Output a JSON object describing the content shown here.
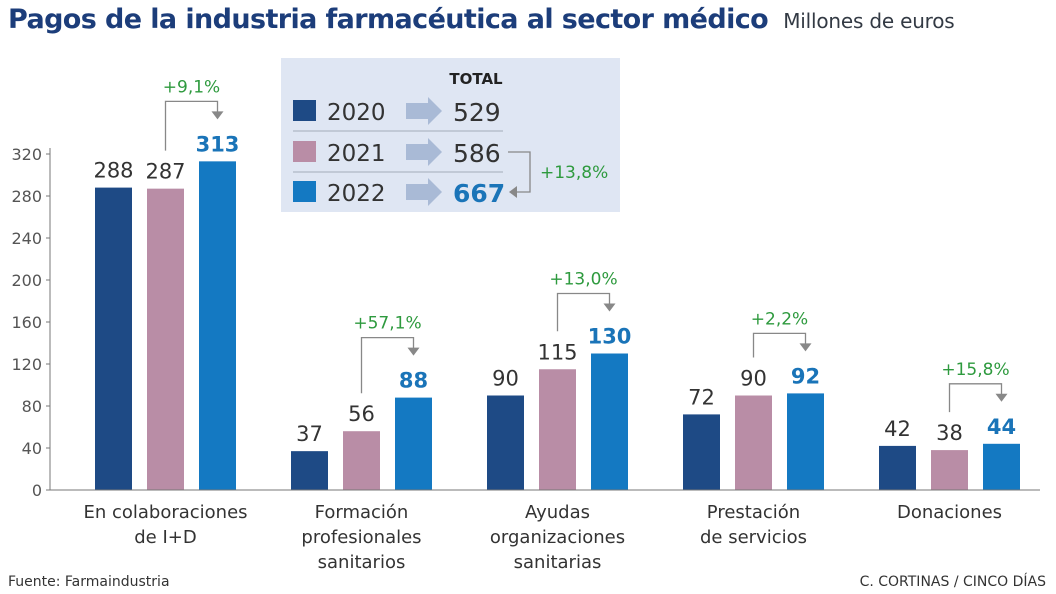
{
  "title": "Pagos de la industria farmacéutica al sector médico",
  "subtitle": "Millones de euros",
  "source": "Fuente: Farmaindustria",
  "credit": "C. CORTINAS / CINCO DÍAS",
  "colors": {
    "2020": "#1e4a85",
    "2021": "#b98da6",
    "2022": "#1479c2",
    "growth": "#2e9a3e",
    "legend_bg": "#dfe6f3"
  },
  "chart_data": {
    "type": "bar",
    "ylim": [
      0,
      320
    ],
    "yticks": [
      0,
      40,
      80,
      120,
      160,
      200,
      240,
      280,
      320
    ],
    "categories": [
      [
        "En colaboraciones",
        "de I+D"
      ],
      [
        "Formación",
        "profesionales",
        "sanitarios"
      ],
      [
        "Ayudas",
        "organizaciones",
        "sanitarias"
      ],
      [
        "Prestación",
        "de servicios"
      ],
      [
        "Donaciones"
      ]
    ],
    "series": [
      {
        "name": "2020",
        "values": [
          288,
          37,
          90,
          72,
          42
        ]
      },
      {
        "name": "2021",
        "values": [
          287,
          56,
          115,
          90,
          38
        ]
      },
      {
        "name": "2022",
        "values": [
          313,
          88,
          130,
          92,
          44
        ]
      }
    ],
    "growth_labels": [
      "+9,1%",
      "+57,1%",
      "+13,0%",
      "+2,2%",
      "+15,8%"
    ],
    "legend": {
      "header": "TOTAL",
      "entries": [
        {
          "year": "2020",
          "total": "529"
        },
        {
          "year": "2021",
          "total": "586"
        },
        {
          "year": "2022",
          "total": "667"
        }
      ],
      "total_growth": "+13,8%"
    }
  }
}
